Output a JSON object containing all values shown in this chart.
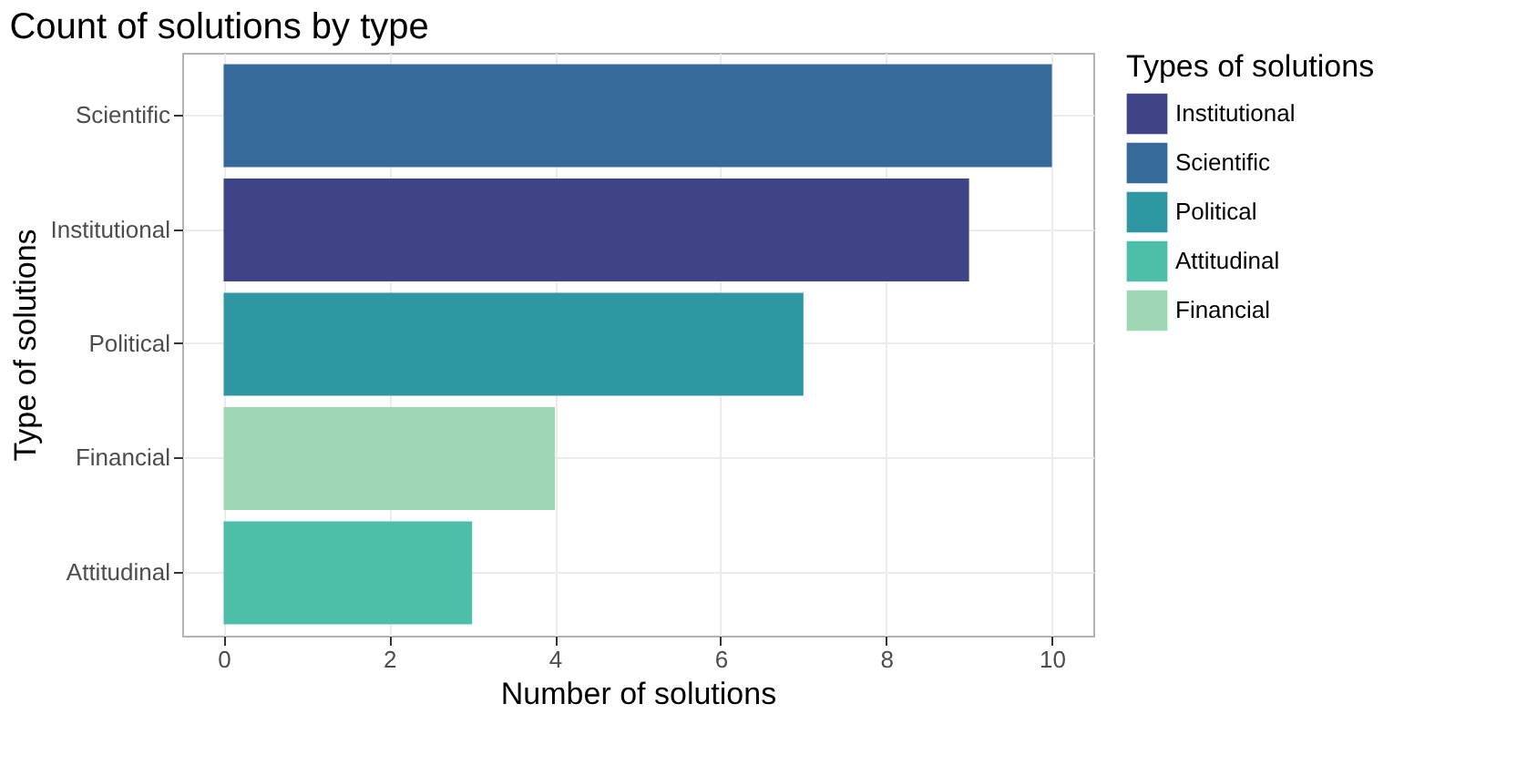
{
  "chart_data": {
    "type": "bar",
    "orientation": "horizontal",
    "title": "Count of solutions by type",
    "xlabel": "Number of solutions",
    "ylabel": "Type of solutions",
    "legend_title": "Types of solutions",
    "categories": [
      "Scientific",
      "Institutional",
      "Political",
      "Financial",
      "Attitudinal"
    ],
    "series": [
      {
        "name": "Institutional",
        "color": "#3f4388",
        "values": [
          null,
          9,
          null,
          null,
          null
        ]
      },
      {
        "name": "Scientific",
        "color": "#35699a",
        "values": [
          10,
          null,
          null,
          null,
          null
        ]
      },
      {
        "name": "Political",
        "color": "#2f97a3",
        "values": [
          null,
          null,
          7,
          null,
          null
        ]
      },
      {
        "name": "Attitudinal",
        "color": "#4dbfa8",
        "values": [
          null,
          null,
          null,
          null,
          3
        ]
      },
      {
        "name": "Financial",
        "color": "#9fd6b4",
        "values": [
          null,
          null,
          null,
          4,
          null
        ]
      }
    ],
    "xlim": [
      -0.5,
      10.5
    ],
    "xticks": [
      0,
      2,
      4,
      6,
      8,
      10
    ],
    "grid": true,
    "legend": "right"
  }
}
